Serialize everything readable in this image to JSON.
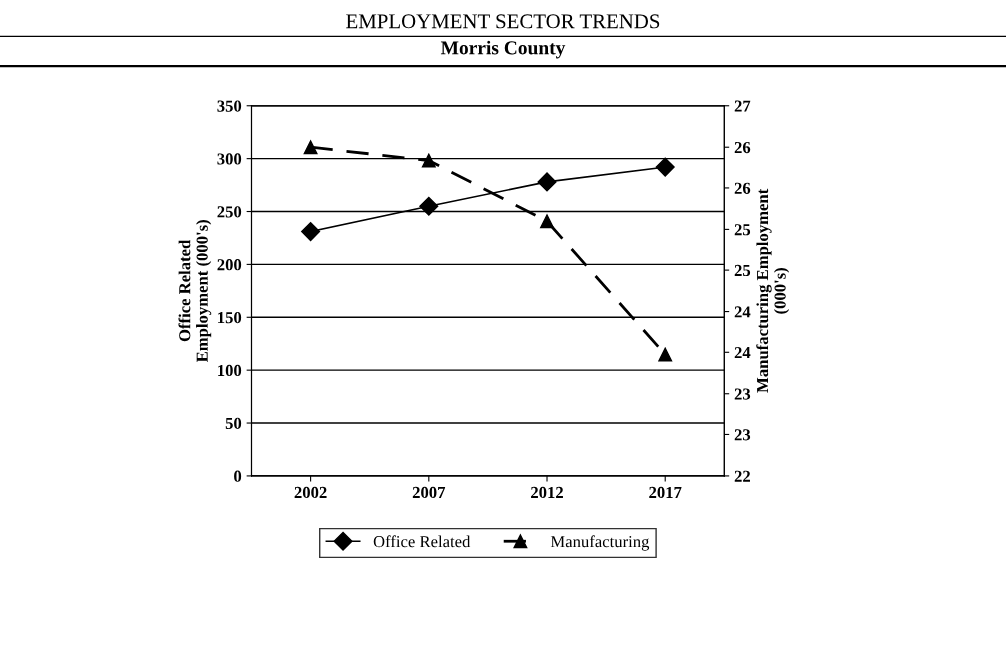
{
  "chart_data": {
    "type": "line",
    "title": "EMPLOYMENT SECTOR TRENDS",
    "subtitle": "Morris County",
    "categories": [
      "2002",
      "2007",
      "2012",
      "2017"
    ],
    "ylabel": "Office Related\nEmployment (000's)",
    "y2label": "Manufacturing Employment\n(000's)",
    "ylim": [
      0,
      350
    ],
    "yticks": [
      0,
      50,
      100,
      150,
      200,
      250,
      300,
      350
    ],
    "y2lim": [
      22,
      27
    ],
    "y2ticks": [
      22,
      {
        "value": 22.56,
        "label": "23"
      },
      {
        "value": 23.11,
        "label": "23"
      },
      {
        "value": 23.67,
        "label": "24"
      },
      {
        "value": 24.22,
        "label": "24"
      },
      {
        "value": 24.78,
        "label": "25"
      },
      {
        "value": 25.33,
        "label": "25"
      },
      {
        "value": 25.89,
        "label": "26"
      },
      {
        "value": 26.44,
        "label": "26"
      },
      27
    ],
    "series": [
      {
        "name": "Office Related",
        "color": "#000000",
        "values": [
          231,
          255,
          278,
          292
        ],
        "marker": "diamond",
        "line_style": "solid"
      },
      {
        "name": "Manufacturing",
        "color": "#000000",
        "values": [
          26.44,
          26.26,
          25.44,
          23.64
        ],
        "marker": "triangle",
        "line_style": "dashed",
        "axis": "y2"
      }
    ],
    "grid": "y",
    "legend": "bottom"
  }
}
